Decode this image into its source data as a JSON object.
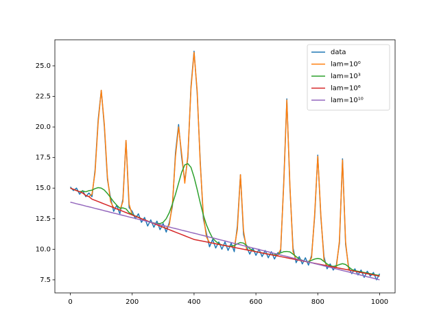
{
  "chart_data": {
    "type": "line",
    "x": [
      0,
      10,
      20,
      30,
      40,
      50,
      60,
      70,
      80,
      90,
      100,
      110,
      120,
      130,
      140,
      150,
      160,
      170,
      180,
      190,
      200,
      210,
      220,
      230,
      240,
      250,
      260,
      270,
      280,
      290,
      300,
      310,
      320,
      330,
      340,
      350,
      360,
      370,
      380,
      390,
      400,
      410,
      420,
      430,
      440,
      450,
      460,
      470,
      480,
      490,
      500,
      510,
      520,
      530,
      540,
      550,
      560,
      570,
      580,
      590,
      600,
      610,
      620,
      630,
      640,
      650,
      660,
      670,
      680,
      690,
      700,
      710,
      720,
      730,
      740,
      750,
      760,
      770,
      780,
      790,
      800,
      810,
      820,
      830,
      840,
      850,
      860,
      870,
      880,
      890,
      900,
      910,
      920,
      930,
      940,
      950,
      960,
      970,
      980,
      990,
      1000
    ],
    "series": [
      {
        "name": "data",
        "color": "#1f77b4",
        "values": [
          15.1,
          14.8,
          15.0,
          14.5,
          14.8,
          14.3,
          14.6,
          14.3,
          16.5,
          20.6,
          23.0,
          20.0,
          15.7,
          14.2,
          13.1,
          13.6,
          12.9,
          14.1,
          18.9,
          13.4,
          13.1,
          12.5,
          12.9,
          12.2,
          12.6,
          11.9,
          12.4,
          11.8,
          12.3,
          11.6,
          12.1,
          11.4,
          12.2,
          13.5,
          17.9,
          20.2,
          17.5,
          15.6,
          17.5,
          23.3,
          26.2,
          22.8,
          17.2,
          12.5,
          11.3,
          10.2,
          10.8,
          10.1,
          10.6,
          10.0,
          10.6,
          9.9,
          10.5,
          9.8,
          11.9,
          16.1,
          11.2,
          10.2,
          9.6,
          10.1,
          9.5,
          10.0,
          9.4,
          9.9,
          9.3,
          9.8,
          9.2,
          9.7,
          9.8,
          15.5,
          22.3,
          15.0,
          10.1,
          8.9,
          9.4,
          8.8,
          9.3,
          8.7,
          9.5,
          12.7,
          17.7,
          12.6,
          9.4,
          8.4,
          8.8,
          8.3,
          8.7,
          10.5,
          17.4,
          10.4,
          8.5,
          8.0,
          8.4,
          7.9,
          8.3,
          7.7,
          8.2,
          7.8,
          8.1,
          7.5,
          8.0
        ]
      },
      {
        "name": "lam=10⁰",
        "color": "#ff7f0e",
        "values": [
          15.0,
          14.9,
          14.8,
          14.7,
          14.6,
          14.4,
          14.3,
          14.5,
          16.3,
          20.4,
          23.0,
          20.2,
          15.9,
          13.9,
          13.4,
          13.3,
          13.2,
          13.9,
          18.9,
          13.7,
          12.8,
          12.7,
          12.6,
          12.5,
          12.4,
          12.3,
          12.2,
          12.1,
          12.0,
          11.9,
          11.8,
          11.7,
          12.0,
          13.7,
          17.6,
          20.0,
          17.8,
          15.4,
          17.7,
          23.1,
          26.1,
          23.0,
          17.0,
          12.8,
          11.0,
          10.55,
          10.5,
          10.45,
          10.4,
          10.35,
          10.3,
          10.25,
          10.2,
          10.15,
          11.6,
          16.1,
          11.5,
          9.95,
          9.9,
          9.85,
          9.8,
          9.75,
          9.7,
          9.65,
          9.6,
          9.55,
          9.5,
          9.45,
          10.0,
          15.3,
          22.2,
          15.2,
          9.8,
          9.15,
          9.1,
          9.05,
          9.0,
          8.95,
          9.3,
          12.9,
          17.6,
          12.8,
          9.1,
          8.65,
          8.6,
          8.55,
          8.5,
          10.7,
          17.3,
          10.6,
          8.3,
          8.25,
          8.2,
          8.15,
          8.1,
          8.05,
          8.0,
          7.95,
          7.9,
          7.85,
          7.8
        ]
      },
      {
        "name": "lam=10³",
        "color": "#2ca02c",
        "values": [
          15.0,
          14.9,
          14.8,
          14.7,
          14.76,
          14.7,
          14.79,
          14.83,
          14.96,
          15.04,
          15.0,
          14.84,
          14.56,
          14.23,
          13.89,
          13.6,
          13.36,
          13.38,
          13.3,
          13.0,
          12.85,
          12.72,
          12.62,
          12.5,
          12.4,
          12.3,
          12.2,
          12.15,
          12.1,
          12.1,
          12.2,
          12.5,
          13.0,
          13.7,
          14.5,
          15.4,
          16.3,
          16.9,
          17.0,
          16.7,
          15.9,
          14.9,
          13.8,
          12.8,
          12.0,
          11.4,
          10.9,
          10.65,
          10.45,
          10.35,
          10.3,
          10.25,
          10.25,
          10.3,
          10.45,
          10.55,
          10.5,
          10.3,
          10.05,
          9.9,
          9.8,
          9.75,
          9.7,
          9.65,
          9.6,
          9.55,
          9.55,
          9.6,
          9.7,
          9.8,
          9.82,
          9.78,
          9.6,
          9.4,
          9.2,
          9.1,
          9.0,
          9.0,
          9.1,
          9.2,
          9.25,
          9.2,
          9.0,
          8.8,
          8.65,
          8.6,
          8.65,
          8.75,
          8.82,
          8.75,
          8.55,
          8.35,
          8.25,
          8.2,
          8.15,
          8.1,
          8.05,
          8.0,
          7.95,
          7.9,
          7.85
        ]
      },
      {
        "name": "lam=10⁶",
        "color": "#d62728",
        "values": [
          15.0,
          14.9,
          14.8,
          14.7,
          14.6,
          14.4,
          14.3,
          14.1,
          14.0,
          13.9,
          13.8,
          13.7,
          13.6,
          13.5,
          13.4,
          13.3,
          13.2,
          13.1,
          13.0,
          12.9,
          12.8,
          12.7,
          12.6,
          12.5,
          12.4,
          12.3,
          12.2,
          12.1,
          12.0,
          11.9,
          11.8,
          11.7,
          11.6,
          11.5,
          11.4,
          11.3,
          11.2,
          11.1,
          11.0,
          10.9,
          10.8,
          10.75,
          10.7,
          10.65,
          10.6,
          10.55,
          10.5,
          10.45,
          10.4,
          10.35,
          10.3,
          10.25,
          10.2,
          10.15,
          10.1,
          10.05,
          10.0,
          9.95,
          9.9,
          9.85,
          9.8,
          9.75,
          9.7,
          9.65,
          9.6,
          9.55,
          9.5,
          9.45,
          9.4,
          9.35,
          9.3,
          9.25,
          9.2,
          9.15,
          9.1,
          9.05,
          9.0,
          8.95,
          8.9,
          8.85,
          8.8,
          8.75,
          8.7,
          8.65,
          8.6,
          8.55,
          8.5,
          8.45,
          8.4,
          8.35,
          8.3,
          8.25,
          8.2,
          8.15,
          8.1,
          8.05,
          8.0,
          7.95,
          7.9,
          7.85,
          7.8
        ]
      },
      {
        "name": "lam=10¹⁰",
        "color": "#9467bd",
        "values": [
          13.85,
          13.79,
          13.72,
          13.66,
          13.6,
          13.53,
          13.47,
          13.41,
          13.34,
          13.28,
          13.22,
          13.15,
          13.09,
          13.02,
          12.96,
          12.9,
          12.83,
          12.77,
          12.71,
          12.64,
          12.58,
          12.52,
          12.45,
          12.39,
          12.33,
          12.26,
          12.2,
          12.14,
          12.07,
          12.01,
          11.95,
          11.88,
          11.82,
          11.75,
          11.69,
          11.63,
          11.56,
          11.5,
          11.44,
          11.37,
          11.31,
          11.25,
          11.18,
          11.12,
          11.06,
          10.99,
          10.93,
          10.87,
          10.8,
          10.74,
          10.68,
          10.61,
          10.55,
          10.48,
          10.42,
          10.36,
          10.29,
          10.23,
          10.17,
          10.1,
          10.04,
          9.98,
          9.91,
          9.85,
          9.79,
          9.72,
          9.66,
          9.6,
          9.53,
          9.47,
          9.41,
          9.34,
          9.28,
          9.21,
          9.15,
          9.09,
          9.02,
          8.96,
          8.9,
          8.83,
          8.77,
          8.71,
          8.64,
          8.58,
          8.52,
          8.45,
          8.39,
          8.33,
          8.26,
          8.2,
          8.14,
          8.07,
          8.01,
          7.94,
          7.88,
          7.82,
          7.75,
          7.69,
          7.63,
          7.56,
          7.5
        ]
      }
    ],
    "xlim": [
      -50,
      1050
    ],
    "xticks": [
      0,
      200,
      400,
      600,
      800,
      1000
    ],
    "ylim": [
      6.43,
      27.13
    ],
    "yticks": [
      7.5,
      {
        "value": 10,
        "label": "10.0"
      },
      12.5,
      {
        "value": 15,
        "label": "15.0"
      },
      17.5,
      {
        "value": 20,
        "label": "20.0"
      },
      22.5,
      {
        "value": 25,
        "label": "25.0"
      }
    ],
    "legend": "upper right"
  }
}
